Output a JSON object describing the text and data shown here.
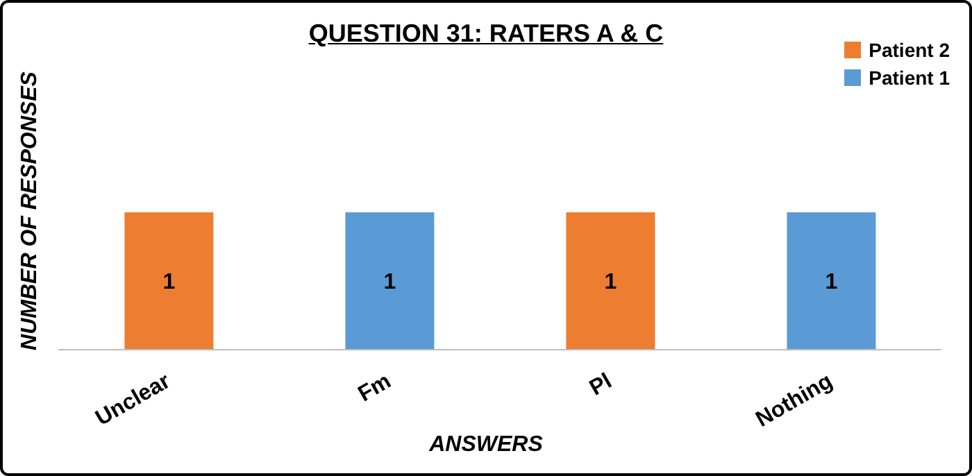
{
  "chart_data": {
    "type": "bar",
    "title": "QUESTION 31: RATERS A & C",
    "xlabel": "ANSWERS",
    "ylabel": "NUMBER OF RESPONSES",
    "categories": [
      "Unclear",
      "Fm",
      "Pl",
      "Nothing"
    ],
    "stacked": true,
    "data_labels": true,
    "legend": "top right",
    "tick_labels": "x",
    "series": [
      {
        "name": "Patient 2",
        "color": "#ed7d31",
        "values": [
          1,
          null,
          1,
          null
        ]
      },
      {
        "name": "Patient 1",
        "color": "#5b9bd5",
        "values": [
          null,
          1,
          null,
          1
        ]
      }
    ]
  }
}
